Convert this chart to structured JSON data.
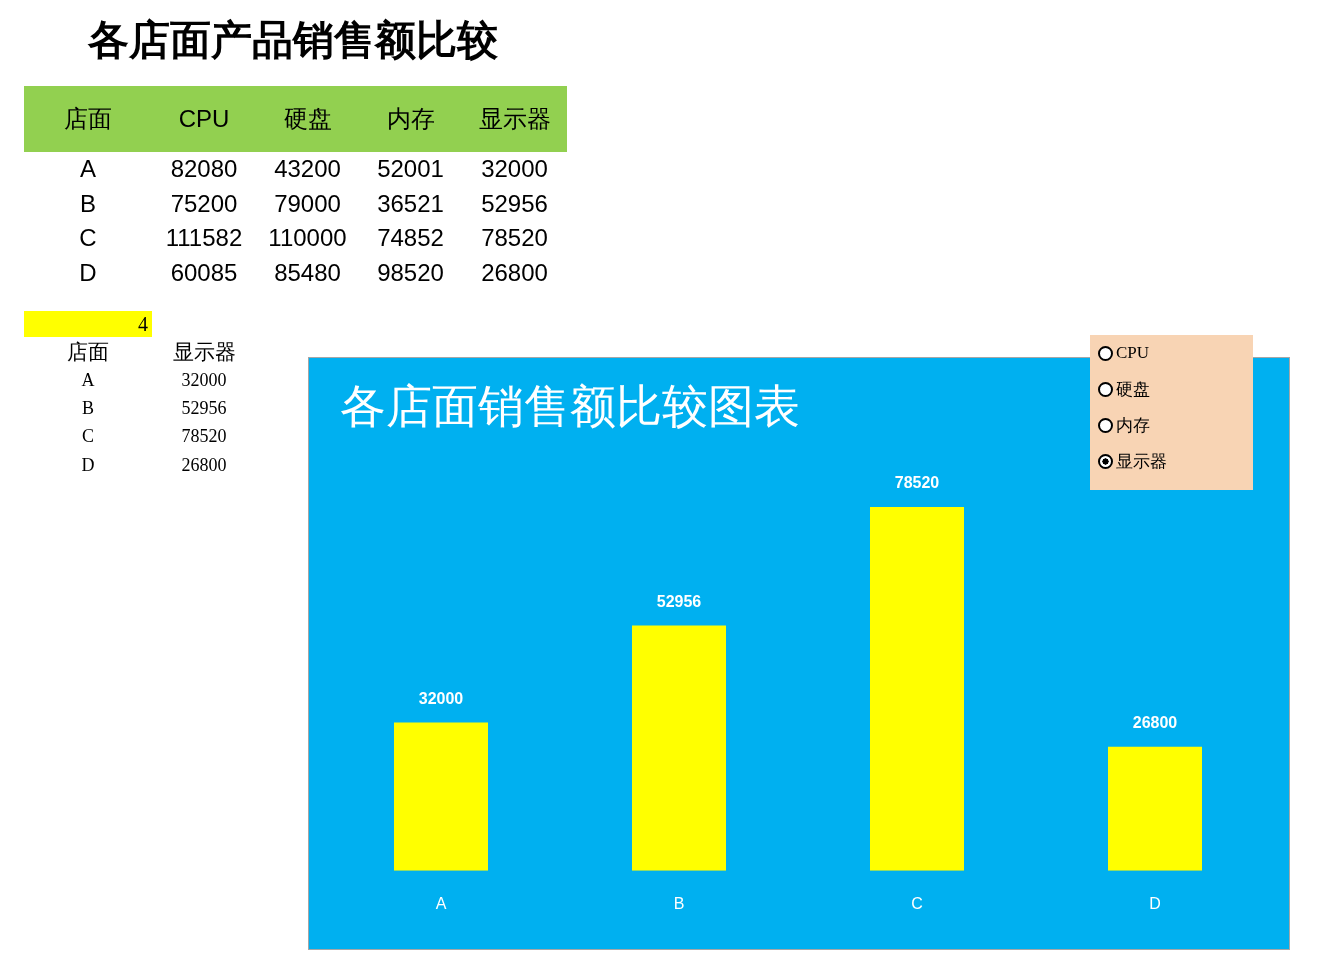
{
  "chart_data": [
    {
      "type": "other",
      "title": "各店面产品销售额比较",
      "xlabel": "店面",
      "categories": [
        "A",
        "B",
        "C",
        "D"
      ],
      "series": [
        {
          "name": "CPU",
          "values": [
            82080,
            75200,
            111582,
            60085
          ]
        },
        {
          "name": "硬盘",
          "values": [
            43200,
            79000,
            110000,
            85480
          ]
        },
        {
          "name": "内存",
          "values": [
            52001,
            36521,
            74852,
            98520
          ]
        },
        {
          "name": "显示器",
          "values": [
            32000,
            52956,
            78520,
            26800
          ]
        }
      ],
      "data_labels": true
    },
    {
      "type": "other",
      "annotations": [
        "4"
      ],
      "xlabel": "店面",
      "categories": [
        "A",
        "B",
        "C",
        "D"
      ],
      "series": [
        {
          "name": "显示器",
          "values": [
            32000,
            52956,
            78520,
            26800
          ]
        }
      ],
      "data_labels": true
    },
    {
      "type": "bar",
      "title": "各店面销售额比较图表",
      "categories": [
        "A",
        "B",
        "C",
        "D"
      ],
      "values": [
        32000,
        52956,
        78520,
        26800
      ],
      "color": "#ffff00",
      "data_labels": true
    }
  ]
}
